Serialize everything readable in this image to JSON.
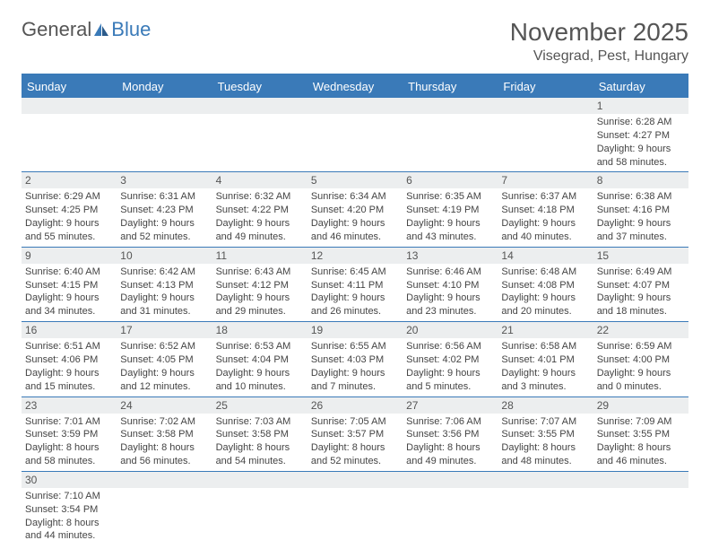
{
  "logo": {
    "text1": "General",
    "text2": "Blue"
  },
  "title": "November 2025",
  "location": "Visegrad, Pest, Hungary",
  "colors": {
    "header_bg": "#3a7ab8",
    "header_text": "#ffffff",
    "daynum_bg": "#eceeef",
    "row_border": "#3a7ab8",
    "text": "#444444"
  },
  "weekdays": [
    "Sunday",
    "Monday",
    "Tuesday",
    "Wednesday",
    "Thursday",
    "Friday",
    "Saturday"
  ],
  "weeks": [
    {
      "numbers": [
        "",
        "",
        "",
        "",
        "",
        "",
        "1"
      ],
      "cells": [
        null,
        null,
        null,
        null,
        null,
        null,
        {
          "sunrise": "Sunrise: 6:28 AM",
          "sunset": "Sunset: 4:27 PM",
          "day1": "Daylight: 9 hours",
          "day2": "and 58 minutes."
        }
      ]
    },
    {
      "numbers": [
        "2",
        "3",
        "4",
        "5",
        "6",
        "7",
        "8"
      ],
      "cells": [
        {
          "sunrise": "Sunrise: 6:29 AM",
          "sunset": "Sunset: 4:25 PM",
          "day1": "Daylight: 9 hours",
          "day2": "and 55 minutes."
        },
        {
          "sunrise": "Sunrise: 6:31 AM",
          "sunset": "Sunset: 4:23 PM",
          "day1": "Daylight: 9 hours",
          "day2": "and 52 minutes."
        },
        {
          "sunrise": "Sunrise: 6:32 AM",
          "sunset": "Sunset: 4:22 PM",
          "day1": "Daylight: 9 hours",
          "day2": "and 49 minutes."
        },
        {
          "sunrise": "Sunrise: 6:34 AM",
          "sunset": "Sunset: 4:20 PM",
          "day1": "Daylight: 9 hours",
          "day2": "and 46 minutes."
        },
        {
          "sunrise": "Sunrise: 6:35 AM",
          "sunset": "Sunset: 4:19 PM",
          "day1": "Daylight: 9 hours",
          "day2": "and 43 minutes."
        },
        {
          "sunrise": "Sunrise: 6:37 AM",
          "sunset": "Sunset: 4:18 PM",
          "day1": "Daylight: 9 hours",
          "day2": "and 40 minutes."
        },
        {
          "sunrise": "Sunrise: 6:38 AM",
          "sunset": "Sunset: 4:16 PM",
          "day1": "Daylight: 9 hours",
          "day2": "and 37 minutes."
        }
      ]
    },
    {
      "numbers": [
        "9",
        "10",
        "11",
        "12",
        "13",
        "14",
        "15"
      ],
      "cells": [
        {
          "sunrise": "Sunrise: 6:40 AM",
          "sunset": "Sunset: 4:15 PM",
          "day1": "Daylight: 9 hours",
          "day2": "and 34 minutes."
        },
        {
          "sunrise": "Sunrise: 6:42 AM",
          "sunset": "Sunset: 4:13 PM",
          "day1": "Daylight: 9 hours",
          "day2": "and 31 minutes."
        },
        {
          "sunrise": "Sunrise: 6:43 AM",
          "sunset": "Sunset: 4:12 PM",
          "day1": "Daylight: 9 hours",
          "day2": "and 29 minutes."
        },
        {
          "sunrise": "Sunrise: 6:45 AM",
          "sunset": "Sunset: 4:11 PM",
          "day1": "Daylight: 9 hours",
          "day2": "and 26 minutes."
        },
        {
          "sunrise": "Sunrise: 6:46 AM",
          "sunset": "Sunset: 4:10 PM",
          "day1": "Daylight: 9 hours",
          "day2": "and 23 minutes."
        },
        {
          "sunrise": "Sunrise: 6:48 AM",
          "sunset": "Sunset: 4:08 PM",
          "day1": "Daylight: 9 hours",
          "day2": "and 20 minutes."
        },
        {
          "sunrise": "Sunrise: 6:49 AM",
          "sunset": "Sunset: 4:07 PM",
          "day1": "Daylight: 9 hours",
          "day2": "and 18 minutes."
        }
      ]
    },
    {
      "numbers": [
        "16",
        "17",
        "18",
        "19",
        "20",
        "21",
        "22"
      ],
      "cells": [
        {
          "sunrise": "Sunrise: 6:51 AM",
          "sunset": "Sunset: 4:06 PM",
          "day1": "Daylight: 9 hours",
          "day2": "and 15 minutes."
        },
        {
          "sunrise": "Sunrise: 6:52 AM",
          "sunset": "Sunset: 4:05 PM",
          "day1": "Daylight: 9 hours",
          "day2": "and 12 minutes."
        },
        {
          "sunrise": "Sunrise: 6:53 AM",
          "sunset": "Sunset: 4:04 PM",
          "day1": "Daylight: 9 hours",
          "day2": "and 10 minutes."
        },
        {
          "sunrise": "Sunrise: 6:55 AM",
          "sunset": "Sunset: 4:03 PM",
          "day1": "Daylight: 9 hours",
          "day2": "and 7 minutes."
        },
        {
          "sunrise": "Sunrise: 6:56 AM",
          "sunset": "Sunset: 4:02 PM",
          "day1": "Daylight: 9 hours",
          "day2": "and 5 minutes."
        },
        {
          "sunrise": "Sunrise: 6:58 AM",
          "sunset": "Sunset: 4:01 PM",
          "day1": "Daylight: 9 hours",
          "day2": "and 3 minutes."
        },
        {
          "sunrise": "Sunrise: 6:59 AM",
          "sunset": "Sunset: 4:00 PM",
          "day1": "Daylight: 9 hours",
          "day2": "and 0 minutes."
        }
      ]
    },
    {
      "numbers": [
        "23",
        "24",
        "25",
        "26",
        "27",
        "28",
        "29"
      ],
      "cells": [
        {
          "sunrise": "Sunrise: 7:01 AM",
          "sunset": "Sunset: 3:59 PM",
          "day1": "Daylight: 8 hours",
          "day2": "and 58 minutes."
        },
        {
          "sunrise": "Sunrise: 7:02 AM",
          "sunset": "Sunset: 3:58 PM",
          "day1": "Daylight: 8 hours",
          "day2": "and 56 minutes."
        },
        {
          "sunrise": "Sunrise: 7:03 AM",
          "sunset": "Sunset: 3:58 PM",
          "day1": "Daylight: 8 hours",
          "day2": "and 54 minutes."
        },
        {
          "sunrise": "Sunrise: 7:05 AM",
          "sunset": "Sunset: 3:57 PM",
          "day1": "Daylight: 8 hours",
          "day2": "and 52 minutes."
        },
        {
          "sunrise": "Sunrise: 7:06 AM",
          "sunset": "Sunset: 3:56 PM",
          "day1": "Daylight: 8 hours",
          "day2": "and 49 minutes."
        },
        {
          "sunrise": "Sunrise: 7:07 AM",
          "sunset": "Sunset: 3:55 PM",
          "day1": "Daylight: 8 hours",
          "day2": "and 48 minutes."
        },
        {
          "sunrise": "Sunrise: 7:09 AM",
          "sunset": "Sunset: 3:55 PM",
          "day1": "Daylight: 8 hours",
          "day2": "and 46 minutes."
        }
      ]
    },
    {
      "numbers": [
        "30",
        "",
        "",
        "",
        "",
        "",
        ""
      ],
      "cells": [
        {
          "sunrise": "Sunrise: 7:10 AM",
          "sunset": "Sunset: 3:54 PM",
          "day1": "Daylight: 8 hours",
          "day2": "and 44 minutes."
        },
        null,
        null,
        null,
        null,
        null,
        null
      ]
    }
  ]
}
